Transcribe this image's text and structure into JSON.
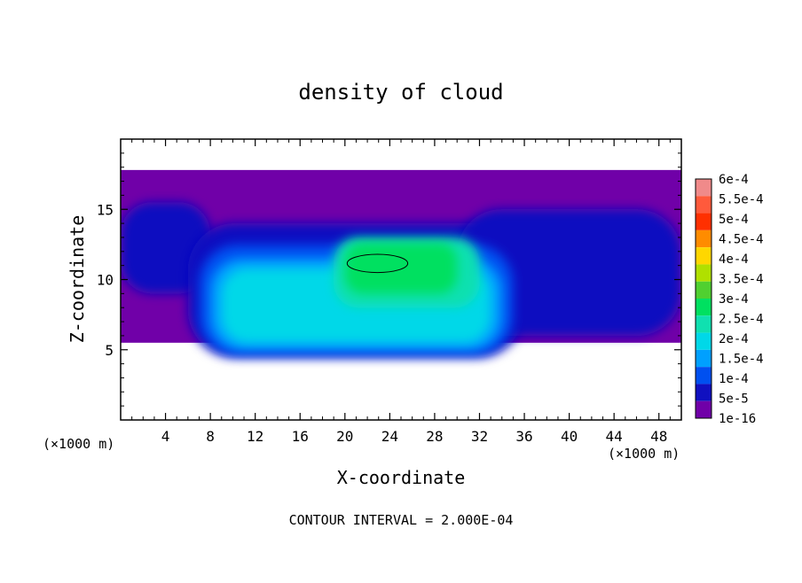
{
  "chart_data": {
    "type": "heatmap",
    "title": "density of cloud",
    "xlabel": "X-coordinate",
    "ylabel": "Z-coordinate",
    "x_unit_left": "(×1000 m)",
    "x_unit_right": "(×1000 m)",
    "footnote": "CONTOUR INTERVAL = 2.000E-04",
    "xlim": [
      0,
      50
    ],
    "ylim": [
      0,
      20
    ],
    "x_ticks": [
      4,
      8,
      12,
      16,
      20,
      24,
      28,
      32,
      36,
      40,
      44,
      48
    ],
    "y_ticks": [
      5,
      10,
      15
    ],
    "colorbar": {
      "labels": [
        "6e-4",
        "5.5e-4",
        "5e-4",
        "4.5e-4",
        "4e-4",
        "3.5e-4",
        "3e-4",
        "2.5e-4",
        "2e-4",
        "1.5e-4",
        "1e-4",
        "5e-5",
        "1e-16"
      ],
      "colors": [
        "#f08a8a",
        "#ff5a3c",
        "#ff3000",
        "#ff8c00",
        "#ffd700",
        "#b0e000",
        "#50d030",
        "#00e060",
        "#10e0b0",
        "#00d8e8",
        "#00a0ff",
        "#0050f0",
        "#1010c0",
        "#7000a8"
      ]
    },
    "regions": [
      {
        "level": 0,
        "x0": 0,
        "x1": 50,
        "z0": 5.5,
        "z1": 17.8
      },
      {
        "level": 1,
        "x0": 0,
        "x1": 8,
        "z0": 9,
        "z1": 15.5
      },
      {
        "level": 1,
        "x0": 6,
        "x1": 36,
        "z0": 4.5,
        "z1": 14
      },
      {
        "level": 1,
        "x0": 30,
        "x1": 50,
        "z0": 6,
        "z1": 15
      },
      {
        "level": 2,
        "x0": 7,
        "x1": 35,
        "z0": 4.6,
        "z1": 12.5
      },
      {
        "level": 3,
        "x0": 8,
        "x1": 34,
        "z0": 5,
        "z1": 11.5
      },
      {
        "level": 4,
        "x0": 9,
        "x1": 33,
        "z0": 5.5,
        "z1": 10.8
      },
      {
        "level": 5,
        "x0": 19,
        "x1": 32,
        "z0": 8,
        "z1": 13
      },
      {
        "level": 6,
        "x0": 20,
        "x1": 30,
        "z0": 9,
        "z1": 12.6
      }
    ],
    "contour": {
      "level": "2e-4",
      "x0": 20.2,
      "x1": 25.6,
      "z0": 10.5,
      "z1": 11.8
    }
  }
}
